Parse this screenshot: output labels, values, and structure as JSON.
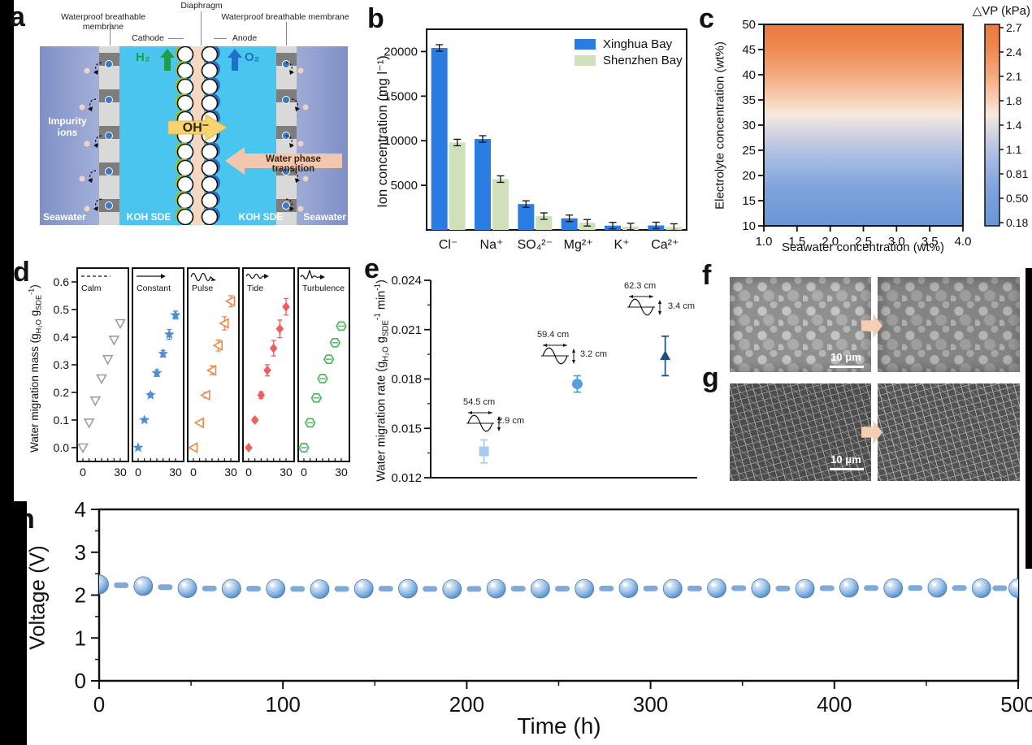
{
  "figure": {
    "panel_labels": {
      "a": "a",
      "b": "b",
      "c": "c",
      "d": "d",
      "e": "e",
      "f": "f",
      "g": "g",
      "h": "h"
    }
  },
  "panel_a": {
    "diaphragm_label": "Diaphragm",
    "membrane_left_label": "Waterproof breathable membrane",
    "membrane_right_label": "Waterproof breathable membrane",
    "cathode_label": "Cathode",
    "anode_label": "Anode",
    "h2_label": "H₂",
    "o2_label": "O₂",
    "oh_label": "OH⁻",
    "water_phase_label": "Water phase transition",
    "impurity_label": "Impurity ions",
    "seawater_left_label": "Seawater",
    "seawater_right_label": "Seawater",
    "koh_left_label": "KOH SDE",
    "koh_right_label": "KOH SDE",
    "colors": {
      "seawater_edge": "#7e90c6",
      "seawater_mid": "#b7c1e3",
      "koh": "#4ac5ef",
      "membrane": "#d9d9d9",
      "membrane_block": "#7d7d7d",
      "diaphragm": "#f6d8c2",
      "cathode_ring": "#8fc044",
      "anode_ring": "#2d6fb8",
      "oh_arrow": "#f7d470",
      "water_arrow": "#f3c7ae",
      "h2_green": "#1f9e45",
      "o2_blue": "#1d72c8",
      "ion_blue": "#3b79c6",
      "ion_peach": "#f1d2c2"
    }
  },
  "panel_f": {
    "scale_bar": "10 μm"
  },
  "panel_g": {
    "scale_bar": "10 μm"
  },
  "chart_data": [
    {
      "panel": "b",
      "type": "bar",
      "ylabel": "Ion concentration (mg l⁻¹)",
      "categories": [
        "Cl⁻",
        "Na⁺",
        "SO₄²⁻",
        "Mg²⁺",
        "K⁺",
        "Ca²⁺"
      ],
      "series": [
        {
          "name": "Xinghua Bay",
          "color": "#2a7ce2",
          "values": [
            20400,
            10200,
            2900,
            1300,
            480,
            500
          ]
        },
        {
          "name": "Shenzhen Bay",
          "color": "#cfe0ba",
          "values": [
            9800,
            5700,
            1550,
            800,
            380,
            320
          ]
        }
      ],
      "yticks": [
        "5000",
        "10000",
        "15000",
        "20000"
      ],
      "ylim": [
        0,
        22500
      ],
      "legend_position": "top-right",
      "error_bars": true
    },
    {
      "panel": "c",
      "type": "heatmap",
      "xlabel": "Seawater concentration (wt%)",
      "ylabel": "Electrolyte concentration (wt%)",
      "colorbar_title": "△VP (kPa)",
      "xticks": [
        "1.0",
        "1.5",
        "2.0",
        "2.5",
        "3.0",
        "3.5",
        "4.0"
      ],
      "yticks": [
        "10",
        "15",
        "20",
        "25",
        "30",
        "35",
        "40",
        "45",
        "50"
      ],
      "xlim": [
        1.0,
        4.0
      ],
      "ylim": [
        10,
        50
      ],
      "colorbar_ticks": [
        "2.7",
        "2.4",
        "2.1",
        "1.8",
        "1.4",
        "1.1",
        "0.81",
        "0.50",
        "0.18"
      ],
      "gradient_stops": [
        [
          "0",
          "#6b95d6"
        ],
        [
          "0.18",
          "#7da3dc"
        ],
        [
          "0.34",
          "#a8bce2"
        ],
        [
          "0.46",
          "#d3d3e2"
        ],
        [
          "0.55",
          "#f7e9de"
        ],
        [
          "0.62",
          "#f8d2b8"
        ],
        [
          "0.75",
          "#f3a87c"
        ],
        [
          "0.9",
          "#ee854b"
        ],
        [
          "1",
          "#ec7a3e"
        ]
      ],
      "dvp_vs_electrolyte": [
        [
          10,
          0.18
        ],
        [
          15,
          0.45
        ],
        [
          20,
          0.72
        ],
        [
          25,
          1.0
        ],
        [
          30,
          1.3
        ],
        [
          35,
          1.7
        ],
        [
          40,
          2.0
        ],
        [
          45,
          2.35
        ],
        [
          50,
          2.7
        ]
      ]
    },
    {
      "panel": "d",
      "type": "scatter",
      "ylabel": "Water migration mass (g_{H₂O} g_{SDE}^{-1})",
      "x": [
        0,
        5,
        10,
        15,
        20,
        25,
        30
      ],
      "xtick_labels": [
        "0",
        "30"
      ],
      "yticks": [
        "0.0",
        "0.1",
        "0.2",
        "0.3",
        "0.4",
        "0.5",
        "0.6"
      ],
      "ylim": [
        -0.05,
        0.65
      ],
      "subpanels": [
        {
          "label": "Calm",
          "icon": "calm-dashed-line",
          "marker": "triangle-down-open",
          "color": "#9c9c9c",
          "values": [
            0,
            0.09,
            0.17,
            0.25,
            0.32,
            0.39,
            0.45
          ],
          "errors": [
            0,
            0,
            0,
            0,
            0,
            0,
            0
          ]
        },
        {
          "label": "Constant",
          "icon": "constant-arrow",
          "marker": "star",
          "color": "#4a90d9",
          "values": [
            0,
            0.1,
            0.19,
            0.27,
            0.34,
            0.41,
            0.48
          ],
          "errors": [
            0,
            0.006,
            0.008,
            0.012,
            0.012,
            0.018,
            0.014
          ]
        },
        {
          "label": "Pulse",
          "icon": "pulse-wave",
          "marker": "triangle-left-open",
          "color": "#f0874a",
          "values": [
            0,
            0.09,
            0.19,
            0.28,
            0.37,
            0.45,
            0.53
          ],
          "errors": [
            0,
            0.006,
            0.01,
            0.016,
            0.02,
            0.024,
            0.02
          ]
        },
        {
          "label": "Tide",
          "icon": "tide-wave",
          "marker": "diamond",
          "color": "#ee5f5f",
          "values": [
            0,
            0.1,
            0.19,
            0.28,
            0.36,
            0.43,
            0.51
          ],
          "errors": [
            0,
            0.008,
            0.012,
            0.02,
            0.028,
            0.032,
            0.03
          ]
        },
        {
          "label": "Turbulence",
          "icon": "turbulence-wave",
          "marker": "hexagon-open",
          "color": "#4fb45f",
          "values": [
            0,
            0.09,
            0.18,
            0.25,
            0.32,
            0.38,
            0.44
          ],
          "errors": [
            0,
            0.01,
            0.008,
            0.012,
            0.012,
            0.01,
            0.012
          ]
        }
      ]
    },
    {
      "panel": "e",
      "type": "scatter",
      "ylabel": "Water migration rate (g_{H₂O} g_{SDE}^{-1} min^{-1})",
      "yticks": [
        "0.012",
        "0.015",
        "0.018",
        "0.021",
        "0.024"
      ],
      "ylim": [
        0.012,
        0.024
      ],
      "points": [
        {
          "marker": "square",
          "color": "#a3cced",
          "value": 0.0136,
          "error": 0.0007,
          "wave_length": "54.5 cm",
          "wave_height": "2.9 cm"
        },
        {
          "marker": "circle",
          "color": "#58a0da",
          "value": 0.0177,
          "error": 0.0005,
          "wave_length": "59.4 cm",
          "wave_height": "3.2 cm"
        },
        {
          "marker": "triangle-up",
          "color": "#1c4f80",
          "value": 0.0194,
          "error": 0.0012,
          "wave_length": "62.3 cm",
          "wave_height": "3.4 cm"
        }
      ]
    },
    {
      "panel": "h",
      "type": "line",
      "xlabel": "Time (h)",
      "ylabel": "Voltage (V)",
      "xticks": [
        "0",
        "100",
        "200",
        "300",
        "400",
        "500"
      ],
      "yticks": [
        "0",
        "1",
        "2",
        "3",
        "4"
      ],
      "xlim": [
        0,
        500
      ],
      "ylim": [
        0,
        4
      ],
      "marker": "sphere",
      "line_style": "dashed",
      "color": "#6fa3d8",
      "dash_color": "#7fa9d9",
      "x": [
        0,
        24,
        48,
        72,
        96,
        120,
        144,
        168,
        192,
        216,
        240,
        264,
        288,
        312,
        336,
        360,
        384,
        408,
        432,
        456,
        480,
        500
      ],
      "values": [
        2.25,
        2.21,
        2.16,
        2.15,
        2.15,
        2.14,
        2.15,
        2.15,
        2.14,
        2.15,
        2.15,
        2.15,
        2.16,
        2.15,
        2.16,
        2.16,
        2.15,
        2.17,
        2.16,
        2.17,
        2.16,
        2.16
      ]
    }
  ]
}
